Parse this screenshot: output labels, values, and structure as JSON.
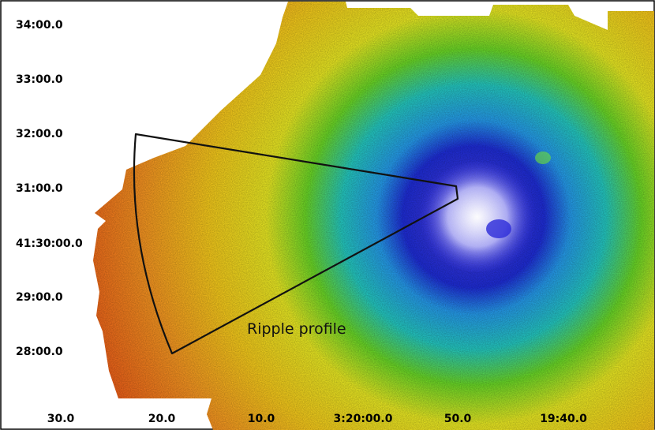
{
  "image": {
    "y_axis_labels": [
      "34:00.0",
      "33:00.0",
      "32:00.0",
      "31:00.0",
      "41:30:00.0",
      "29:00.0",
      "28:00.0"
    ],
    "x_axis_labels": [
      "30.0",
      "20.0",
      "10.0",
      "3:20:00.0",
      "50.0",
      "19:40.0"
    ],
    "region_label": "Ripple profile",
    "colormap": [
      "#e83a10",
      "#ff8a1e",
      "#ffd21c",
      "#f2f224",
      "#6ee028",
      "#25d0c8",
      "#26a0f4",
      "#1f2ee0",
      "#f2f0ff"
    ],
    "region_outline_color": "#111111"
  }
}
